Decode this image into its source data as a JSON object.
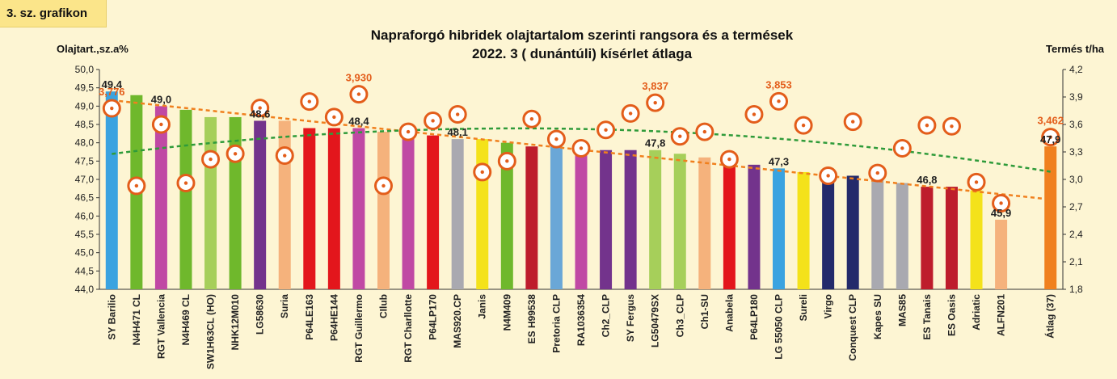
{
  "badge": "3. sz. grafikon",
  "chart_data": {
    "type": "bar",
    "title": [
      "Napraforgó hibridek olajtartalom szerinti rangsora és a termések",
      "2022. 3 ( dunántúli) kísérlet átlaga"
    ],
    "ylabel": "Olajtart.,sz.a%",
    "y2label": "Termés t/ha",
    "ylim": [
      44.0,
      50.0
    ],
    "y2lim": [
      1.8,
      4.2
    ],
    "yticks": [
      "44,0",
      "44,5",
      "45,0",
      "45,5",
      "46,0",
      "46,5",
      "47,0",
      "47,5",
      "48,0",
      "48,5",
      "49,0",
      "49,5",
      "50,0"
    ],
    "y2ticks": [
      "1,8",
      "2,1",
      "2,4",
      "2,7",
      "3,0",
      "3,3",
      "3,6",
      "3,9",
      "4,2"
    ],
    "categories": [
      "SY Barilio",
      "N4H471 CL",
      "RGT Vallencia",
      "N4H469 CL",
      "SW1H63CL (HO)",
      "NHK12M010",
      "LG58630",
      "Suria",
      "P64LE163",
      "P64HE144",
      "RGT Guillermo",
      "CIlub",
      "RGT Charllotte",
      "P64LP170",
      "MAS920.CP",
      "Janis",
      "N4M409",
      "ES H99538",
      "Pretoria CLP",
      "RA1036354",
      "Ch2_CLP",
      "SY Fergus",
      "LG50479SX",
      "Ch3_CLP",
      "Ch1-SU",
      "Anabela",
      "P64LP180",
      "LG 55050 CLP",
      "Sureli",
      "Virgo",
      "Conquest CLP",
      "Kapes SU",
      "MAS85",
      "ES Tanais",
      "ES Oasis",
      "Adriatic",
      "ALFN201",
      "Átlag (37)"
    ],
    "oil_values": [
      49.4,
      49.3,
      49.0,
      48.9,
      48.7,
      48.7,
      48.6,
      48.6,
      48.4,
      48.4,
      48.4,
      48.3,
      48.3,
      48.2,
      48.1,
      48.1,
      48.0,
      47.9,
      47.9,
      47.9,
      47.8,
      47.8,
      47.8,
      47.7,
      47.6,
      47.5,
      47.4,
      47.3,
      47.2,
      47.1,
      47.1,
      47.0,
      46.9,
      46.8,
      46.8,
      46.7,
      45.9,
      47.9
    ],
    "oil_labels": [
      "49,4",
      "",
      "49,0",
      "",
      "",
      "",
      "48,6",
      "",
      "",
      "",
      "48,4",
      "",
      "",
      "",
      "48,1",
      "",
      "",
      "",
      "",
      "",
      "",
      "",
      "47,8",
      "",
      "",
      "",
      "",
      "47,3",
      "",
      "",
      "",
      "",
      "",
      "46,8",
      "",
      "",
      "45,9",
      "47,9"
    ],
    "yield_values": [
      3.776,
      2.93,
      3.6,
      2.96,
      3.22,
      3.28,
      3.78,
      3.26,
      3.85,
      3.68,
      3.93,
      2.93,
      3.52,
      3.64,
      3.71,
      3.08,
      3.2,
      3.66,
      3.44,
      3.34,
      3.54,
      3.72,
      3.837,
      3.47,
      3.52,
      3.22,
      3.71,
      3.853,
      3.59,
      3.04,
      3.63,
      3.07,
      3.34,
      3.59,
      3.58,
      2.97,
      2.74,
      3.462
    ],
    "yield_labels": [
      "3,776",
      "",
      "",
      "",
      "",
      "",
      "",
      "",
      "",
      "",
      "3,930",
      "",
      "",
      "",
      "",
      "",
      "",
      "",
      "",
      "",
      "",
      "",
      "3,837",
      "",
      "",
      "",
      "",
      "3,853",
      "",
      "",
      "",
      "",
      "",
      "",
      "",
      "",
      "",
      "3,462"
    ],
    "bar_colors": [
      "#3aa3e0",
      "#6fb82c",
      "#c049a4",
      "#6fb82c",
      "#a6cf5a",
      "#6fb82c",
      "#73338c",
      "#f5b27c",
      "#e3161c",
      "#e3161c",
      "#c049a4",
      "#f5b27c",
      "#c049a4",
      "#e3161c",
      "#a9a9b0",
      "#f4e21a",
      "#6fb82c",
      "#be1d2c",
      "#6aa7d7",
      "#c049a4",
      "#73338c",
      "#73338c",
      "#a6cf5a",
      "#a6cf5a",
      "#f5b27c",
      "#e3161c",
      "#73338c",
      "#3aa3e0",
      "#f4e21a",
      "#232a6b",
      "#232a6b",
      "#a9a9b0",
      "#a9a9b0",
      "#be1d2c",
      "#be1d2c",
      "#f4e21a",
      "#f5b27c",
      "#f0801e"
    ],
    "trend_colors": {
      "oil": "#f0801e",
      "yield": "#2f9b3a",
      "yield_marker": "#e35d1a",
      "label_accent": "#e35d1a"
    },
    "grid": false
  }
}
